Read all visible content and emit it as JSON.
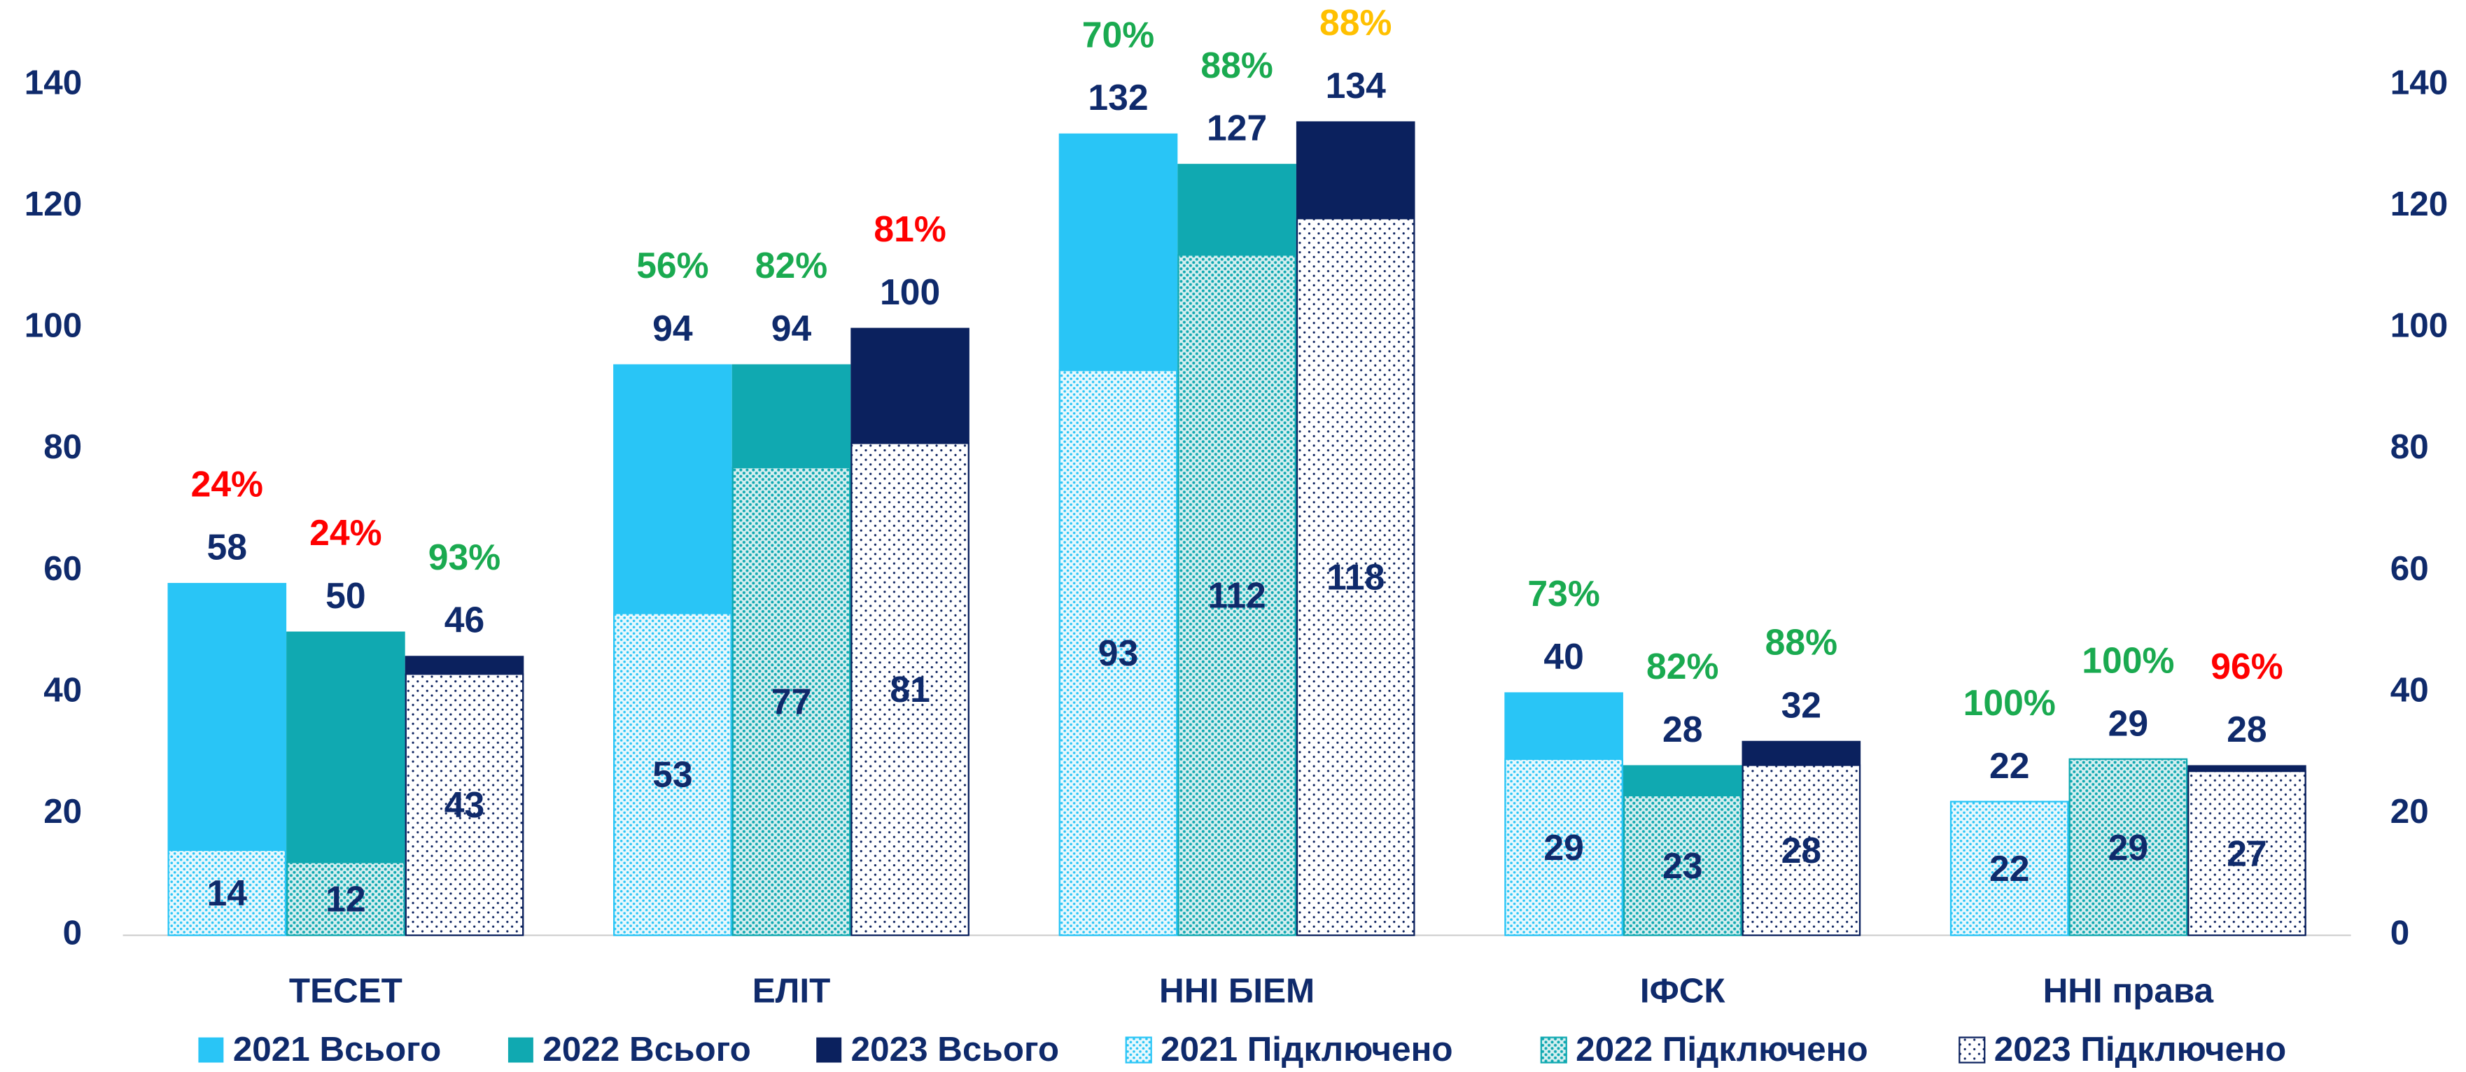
{
  "chart_data": {
    "type": "bar",
    "categories": [
      "ТЕСЕТ",
      "ЕЛІТ",
      "ННІ БІЕМ",
      "ІФСК",
      "ННІ права"
    ],
    "series": [
      {
        "name": "2021 Всього",
        "color": "#29c5f6",
        "values": [
          58,
          94,
          132,
          40,
          22
        ],
        "annotations": [
          "24%",
          "56%",
          "70%",
          "73%",
          "100%"
        ],
        "annotation_colors": [
          "#ff0000",
          "#1aaa50",
          "#1aaa50",
          "#1aaa50",
          "#1aaa50"
        ]
      },
      {
        "name": "2022 Всього",
        "color": "#10a9b1",
        "values": [
          50,
          94,
          127,
          28,
          29
        ],
        "annotations": [
          "24%",
          "82%",
          "88%",
          "82%",
          "100%"
        ],
        "annotation_colors": [
          "#ff0000",
          "#1aaa50",
          "#1aaa50",
          "#1aaa50",
          "#1aaa50"
        ]
      },
      {
        "name": "2023 Всього",
        "color": "#0b215e",
        "values": [
          46,
          100,
          134,
          32,
          28
        ],
        "annotations": [
          "93%",
          "81%",
          "88%",
          "88%",
          "96%"
        ],
        "annotation_colors": [
          "#1aaa50",
          "#ff0000",
          "#ffc000",
          "#1aaa50",
          "#ff0000"
        ]
      },
      {
        "name": "2021 Підключено",
        "color": "#29c5f6",
        "pattern": "dots",
        "values": [
          14,
          53,
          93,
          29,
          22
        ]
      },
      {
        "name": "2022 Підключено",
        "color": "#10a9b1",
        "pattern": "dots",
        "values": [
          12,
          77,
          112,
          23,
          29
        ]
      },
      {
        "name": "2023 Підключено",
        "color": "#0b215e",
        "pattern": "dots",
        "values": [
          43,
          81,
          118,
          28,
          27
        ]
      }
    ],
    "ylim": [
      0,
      140
    ],
    "yticks": [
      0,
      20,
      40,
      60,
      80,
      100,
      120,
      140
    ],
    "y2lim": [
      0,
      140
    ],
    "y2ticks": [
      0,
      20,
      40,
      60,
      80,
      100,
      120,
      140
    ],
    "grid": false,
    "legend": "bottom"
  }
}
